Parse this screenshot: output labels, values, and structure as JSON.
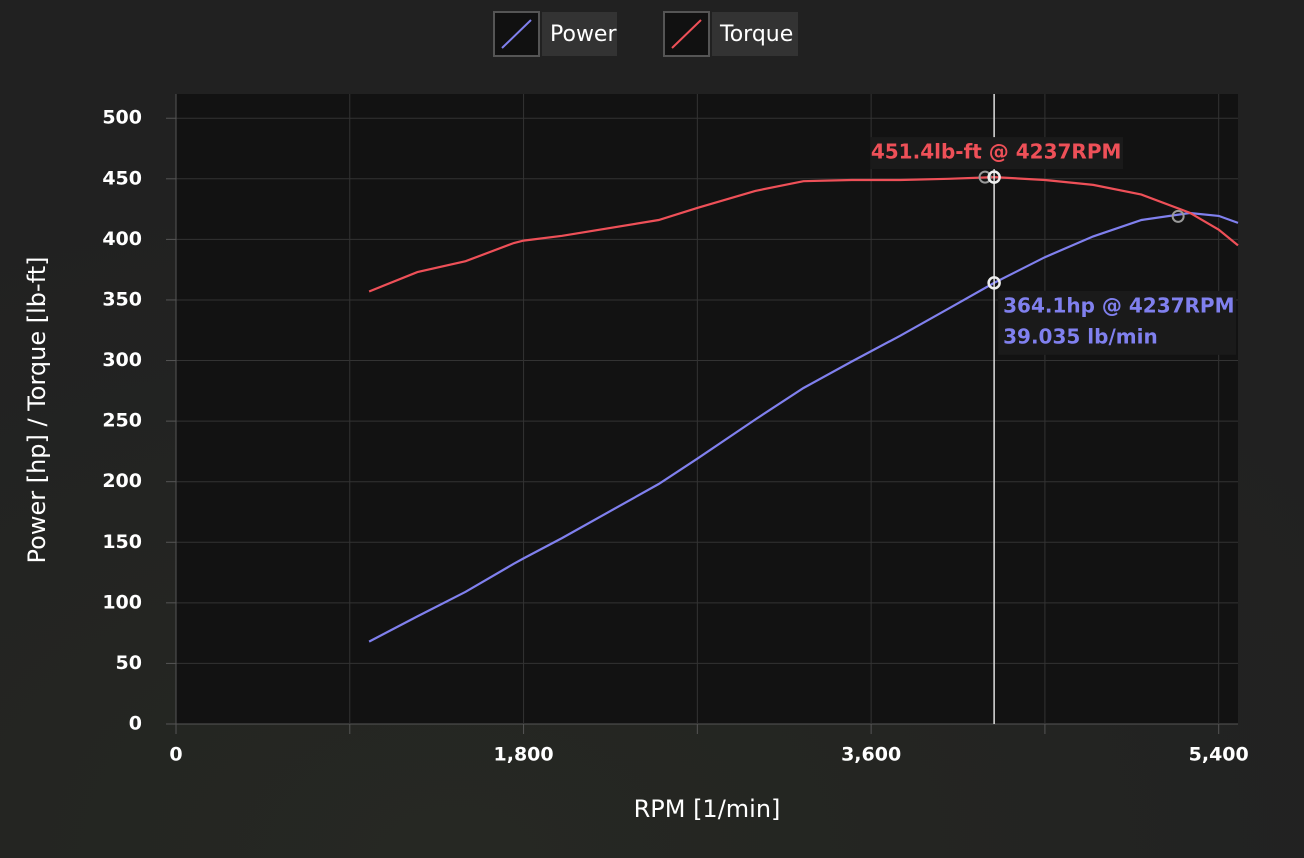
{
  "chart_data": {
    "type": "line",
    "x_label": "RPM [1/min]",
    "y_label": "Power [hp] / Torque [lb-ft]",
    "x": [
      1000,
      1250,
      1500,
      1750,
      1800,
      2000,
      2500,
      2700,
      3000,
      3250,
      3500,
      3750,
      4000,
      4237,
      4500,
      4750,
      5000,
      5250,
      5400,
      5500
    ],
    "series": [
      {
        "name": "Power",
        "color": "#8080ee",
        "values": [
          68.0,
          88.8,
          109.1,
          132.3,
          136.7,
          153.5,
          198.1,
          219.0,
          251.3,
          277.3,
          299.2,
          320.4,
          342.8,
          364.1,
          385.3,
          402.5,
          416.0,
          421.8,
          419.4,
          413.6
        ]
      },
      {
        "name": "Torque",
        "color": "#ee5058",
        "values": [
          357,
          373,
          382,
          397,
          399,
          403,
          416,
          426,
          440,
          448,
          449,
          449,
          450,
          451.4,
          449,
          445,
          437,
          422,
          408,
          395
        ]
      }
    ],
    "xlim": [
      0,
      5500
    ],
    "ylim": [
      0,
      520
    ],
    "xticks": [
      0,
      {
        "value": 1800,
        "label": "1,800"
      },
      {
        "value": 3600,
        "label": "3,600"
      },
      {
        "value": 5400,
        "label": "5,400"
      }
    ],
    "x_minor_ticks": [
      900,
      2700,
      4500
    ],
    "yticks": [
      0,
      50,
      100,
      150,
      200,
      250,
      300,
      350,
      400,
      450,
      500
    ],
    "grid": true,
    "cursor": {
      "x": 4237,
      "power": 364.1,
      "torque": 451.4,
      "torque_label": "451.4lb-ft @ 4237RPM",
      "power_label": "364.1hp @ 4237RPM",
      "flow_label": "39.035 lb/min"
    },
    "peaks": [
      {
        "x": 5190,
        "y": 419
      },
      {
        "x": 4190,
        "y": 451.4
      }
    ]
  }
}
